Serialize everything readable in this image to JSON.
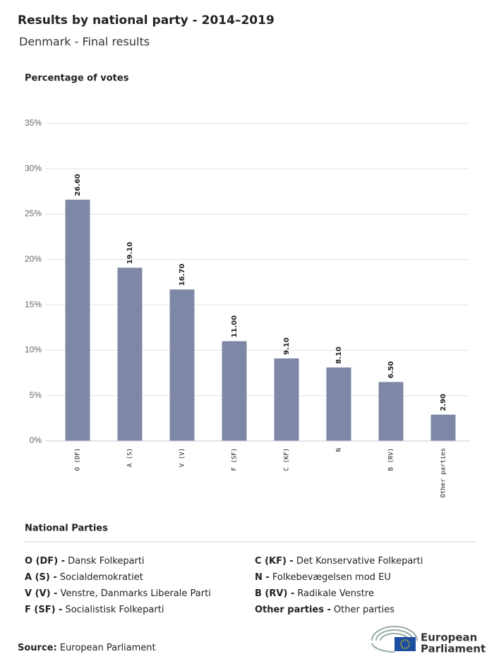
{
  "chart_data": {
    "type": "bar",
    "title": "Results by national party - 2014–2019",
    "subtitle": "Denmark - Final results",
    "y_label": "Percentage of votes",
    "categories": [
      "O (DF)",
      "A (S)",
      "V (V)",
      "F (SF)",
      "C (KF)",
      "N",
      "B (RV)",
      "Other parties"
    ],
    "values": [
      26.6,
      19.1,
      16.7,
      11.0,
      9.1,
      8.1,
      6.5,
      2.9
    ],
    "value_labels": [
      "26.60",
      "19.10",
      "16.70",
      "11.00",
      "9.10",
      "8.10",
      "6.50",
      "2.90"
    ],
    "color": "#7e88a6",
    "ylim": [
      0,
      35
    ],
    "yticks": [
      {
        "value": 0,
        "label": "0%"
      },
      {
        "value": 5,
        "label": "5%"
      },
      {
        "value": 10,
        "label": "10%"
      },
      {
        "value": 15,
        "label": "15%"
      },
      {
        "value": 20,
        "label": "20%"
      },
      {
        "value": 25,
        "label": "25%"
      },
      {
        "value": 30,
        "label": "30%"
      },
      {
        "value": 35,
        "label": "35%"
      }
    ],
    "grid": true
  },
  "legend": {
    "title": "National Parties",
    "items": [
      {
        "code": "O (DF) -",
        "name": "Dansk Folkeparti"
      },
      {
        "code": "A (S) -",
        "name": "Socialdemokratiet"
      },
      {
        "code": "V (V) -",
        "name": "Venstre, Danmarks Liberale Parti"
      },
      {
        "code": "F (SF) -",
        "name": "Socialistisk Folkeparti"
      },
      {
        "code": "C (KF) -",
        "name": "Det Konservative Folkeparti"
      },
      {
        "code": "N -",
        "name": "Folkebevægelsen mod EU"
      },
      {
        "code": "B (RV) -",
        "name": "Radikale Venstre"
      },
      {
        "code": "Other parties -",
        "name": "Other parties"
      }
    ]
  },
  "source": {
    "label": "Source:",
    "text": "European Parliament"
  },
  "logo": {
    "line1": "European",
    "line2": "Parliament"
  }
}
